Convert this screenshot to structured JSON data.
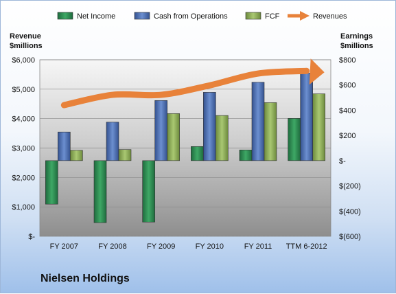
{
  "chart_data": {
    "type": "bar",
    "title": "Nielsen Holdings",
    "categories": [
      "FY 2007",
      "FY 2008",
      "FY 2009",
      "FY 2010",
      "FY 2011",
      "TTM 6-2012"
    ],
    "left_axis": {
      "label_line1": "Revenue",
      "label_line2": "$millions",
      "range": [
        0,
        6000
      ],
      "ticks": [
        0,
        1000,
        2000,
        3000,
        4000,
        5000,
        6000
      ],
      "tick_labels": [
        "$-",
        "$1,000",
        "$2,000",
        "$3,000",
        "$4,000",
        "$5,000",
        "$6,000"
      ]
    },
    "right_axis": {
      "label_line1": "Earnings",
      "label_line2": "$millions",
      "range": [
        -600,
        800
      ],
      "ticks": [
        -600,
        -400,
        -200,
        0,
        200,
        400,
        600,
        800
      ],
      "tick_labels": [
        "$(600)",
        "$(400)",
        "$(200)",
        "$-",
        "$200",
        "$400",
        "$600",
        "$800"
      ]
    },
    "series": [
      {
        "name": "Net Income",
        "axis": "right",
        "values": [
          -345,
          -492,
          -487,
          112,
          85,
          335
        ]
      },
      {
        "name": "Cash from Operations",
        "axis": "right",
        "values": [
          227,
          305,
          477,
          542,
          622,
          695
        ]
      },
      {
        "name": "FCF",
        "axis": "right",
        "values": [
          82,
          88,
          373,
          358,
          460,
          530
        ]
      },
      {
        "name": "Revenues",
        "axis": "left",
        "type": "line",
        "values": [
          4458,
          4808,
          4808,
          5128,
          5532,
          5620
        ]
      }
    ],
    "grid": true,
    "legend_position": "top",
    "colors": {
      "Net Income": "#2e8b57",
      "Cash from Operations": "#4f72b8",
      "FCF": "#8fb05a",
      "Revenues": "#e8823a"
    }
  }
}
